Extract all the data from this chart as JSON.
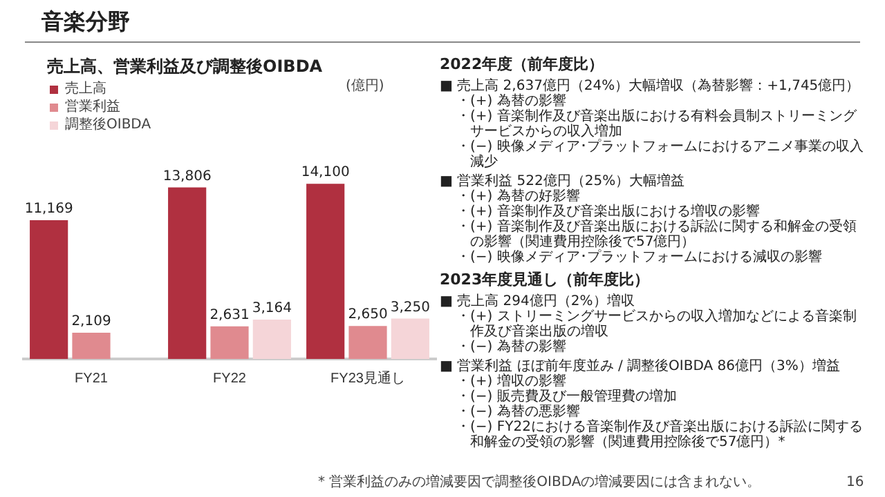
{
  "chart_data": {
    "type": "bar",
    "title": "音楽分野",
    "subtitle": "売上高、営業利益及び調整後OIBDA",
    "categories": [
      "FY21",
      "FY22",
      "FY23見通し"
    ],
    "series": [
      {
        "name": "売上高",
        "color": "#b03040",
        "values": [
          11169,
          13806,
          14100
        ],
        "value_labels": [
          "11,169",
          "13,806",
          "14,100"
        ]
      },
      {
        "name": "営業利益",
        "color": "#e08a8f",
        "values": [
          2109,
          2631,
          2650
        ],
        "value_labels": [
          "2,109",
          "2,631",
          "2,650"
        ]
      },
      {
        "name": "調整後OIBDA",
        "color": "#f5d5d8",
        "values": [
          null,
          3164,
          3250
        ],
        "value_labels": [
          null,
          "3,164",
          "3,250"
        ]
      }
    ],
    "legend": "top left",
    "grid": false,
    "annotations": [
      "(億円)",
      "2022年度（前年度比）",
      "■ 売上高  2,637億円（24%）大幅増収（為替影響：+1,745億円）",
      "・(+) 為替の影響",
      "・(+) 音楽制作及び音楽出版における有料会員制ストリーミングサービスからの収入増加",
      "・(−) 映像メディア･プラットフォームにおけるアニメ事業の収入減少",
      "■ 営業利益  522億円（25%）大幅増益",
      "・(+) 為替の好影響",
      "・(+) 音楽制作及び音楽出版における増収の影響",
      "・(+) 音楽制作及び音楽出版における訴訟に関する和解金の受領の影響（関連費用控除後で57億円）",
      "・(−) 映像メディア･プラットフォームにおける減収の影響",
      "2023年度見通し（前年度比）",
      "■ 売上高  294億円（2%）増収",
      "・(+) ストリーミングサービスからの収入増加などによる音楽制作及び音楽出版の増収",
      "・(−) 為替の影響",
      "■ 営業利益  ほぼ前年度並み / 調整後OIBDA  86億円（3%）増益",
      "・(+) 増収の影響",
      "・(−) 販売費及び一般管理費の増加",
      "・(−) 為替の悪影響",
      "・(−) FY22における音楽制作及び音楽出版における訴訟に関する和解金の受領の影響（関連費用控除後で57億円）*",
      "* 営業利益のみの増減要因で調整後OIBDAの増減要因には含まれない。",
      "16"
    ]
  }
}
